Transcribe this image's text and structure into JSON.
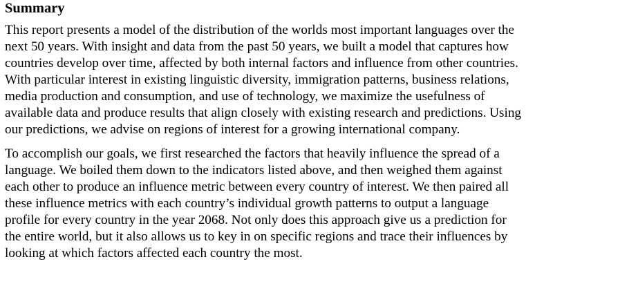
{
  "document": {
    "heading": "Summary",
    "paragraphs": [
      {
        "lines": [
          "This report presents a model of the distribution of the worlds most important languages over the",
          "next 50 years. With insight and data from the past 50 years, we built a model that captures how",
          "countries develop over time, affected by both internal factors and influence from other countries.",
          "With particular interest in existing linguistic diversity, immigration patterns, business relations,",
          "media production and consumption, and use of technology, we maximize the usefulness of",
          "available data and produce results that align closely with existing research and predictions. Using",
          "our predictions, we advise on regions of interest for a growing international company."
        ]
      },
      {
        "lines": [
          "To accomplish our goals, we first researched the factors that heavily influence the spread of a",
          "language. We boiled them down to the indicators listed above, and then weighed them against",
          "each other to produce an influence metric between every country of interest. We then paired all",
          "these influence metrics with each country’s individual growth patterns to output a language",
          "profile for every country in the year 2068. Not only does this approach give us a prediction for",
          "the entire world, but it also allows us to key in on specific regions and trace their influences by",
          "looking at which factors affected each country the most."
        ]
      }
    ]
  }
}
